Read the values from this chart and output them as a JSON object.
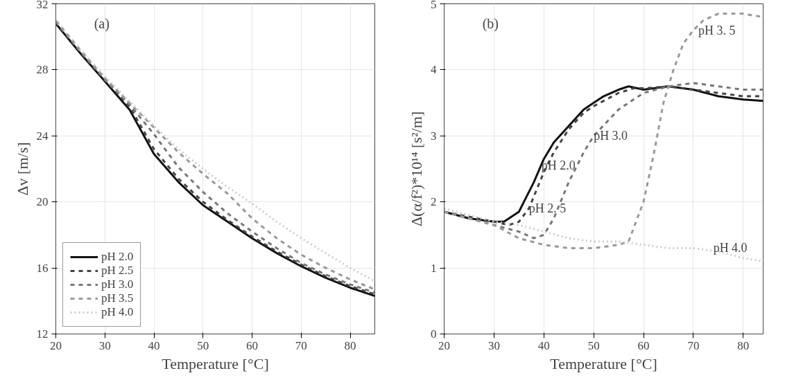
{
  "chart_data": [
    {
      "type": "line",
      "xlabel": "Temperature [°C]",
      "ylabel": "Δv [m/s]",
      "xlim": [
        20,
        85
      ],
      "ylim": [
        12,
        32
      ],
      "xticks": [
        20,
        30,
        40,
        50,
        60,
        70,
        80
      ],
      "yticks": [
        12,
        16,
        20,
        24,
        28,
        32
      ],
      "grid": true,
      "legend": "bottom left",
      "x": [
        20,
        25,
        30,
        35,
        40,
        45,
        50,
        55,
        60,
        65,
        70,
        75,
        80,
        85
      ],
      "annotations": [
        "(a)"
      ],
      "series": [
        {
          "name": "pH 2.0",
          "color": "#111111",
          "line_style": "solid",
          "values": [
            30.8,
            29.0,
            27.3,
            25.6,
            22.9,
            21.2,
            19.8,
            18.8,
            17.8,
            16.9,
            16.1,
            15.4,
            14.8,
            14.3
          ]
        },
        {
          "name": "pH 2.5",
          "color": "#444444",
          "line_style": "dashed",
          "values": [
            30.9,
            29.1,
            27.4,
            25.8,
            23.2,
            21.4,
            20.0,
            18.9,
            17.9,
            17.0,
            16.2,
            15.5,
            14.9,
            14.4
          ]
        },
        {
          "name": "pH 3.0",
          "color": "#777777",
          "line_style": "dashed",
          "values": [
            30.9,
            29.1,
            27.4,
            25.9,
            24.1,
            22.1,
            20.6,
            19.3,
            18.2,
            17.2,
            16.3,
            15.6,
            15.0,
            14.5
          ]
        },
        {
          "name": "pH 3.5",
          "color": "#999999",
          "line_style": "dashed",
          "values": [
            31.0,
            29.2,
            27.5,
            26.0,
            24.5,
            23.0,
            21.7,
            20.5,
            19.0,
            17.8,
            16.8,
            16.0,
            15.3,
            14.7
          ]
        },
        {
          "name": "pH 4.0",
          "color": "#cccccc",
          "line_style": "dotted",
          "values": [
            31.0,
            29.2,
            27.6,
            26.1,
            24.6,
            23.2,
            22.0,
            20.9,
            19.9,
            18.8,
            17.8,
            16.9,
            16.0,
            15.2
          ]
        }
      ]
    },
    {
      "type": "line",
      "xlabel": "Temperature [°C]",
      "ylabel": "Δ(α/f²)*10¹⁴ [s²/m]",
      "xlim": [
        20,
        84
      ],
      "ylim": [
        0,
        5
      ],
      "xticks": [
        20,
        30,
        40,
        50,
        60,
        70,
        80
      ],
      "yticks": [
        0,
        1,
        2,
        3,
        4,
        5
      ],
      "grid": true,
      "annotations": [
        "(b)",
        {
          "text": "pH 2.0",
          "x": 39.5,
          "y": 2.55
        },
        {
          "text": "pH 2. 5",
          "x": 37,
          "y": 1.9
        },
        {
          "text": "pH 3.0",
          "x": 50,
          "y": 3.0
        },
        {
          "text": "pH 3. 5",
          "x": 71,
          "y": 4.6
        },
        {
          "text": "pH 4.0",
          "x": 74,
          "y": 1.3
        }
      ],
      "series": [
        {
          "color": "#111111",
          "line_style": "solid",
          "x": [
            20,
            25,
            30,
            32,
            35,
            36,
            38,
            40,
            42,
            45,
            48,
            50,
            52,
            55,
            57,
            60,
            65,
            70,
            75,
            80,
            84
          ],
          "values": [
            1.85,
            1.75,
            1.7,
            1.7,
            1.85,
            2.0,
            2.3,
            2.65,
            2.9,
            3.15,
            3.4,
            3.5,
            3.6,
            3.7,
            3.75,
            3.7,
            3.75,
            3.7,
            3.6,
            3.55,
            3.53
          ]
        },
        {
          "color": "#444444",
          "line_style": "dashed",
          "x": [
            20,
            30,
            33,
            35,
            37,
            40,
            42,
            45,
            48,
            50,
            55,
            58,
            60,
            65,
            70,
            75,
            80,
            84
          ],
          "values": [
            1.85,
            1.7,
            1.65,
            1.7,
            1.9,
            2.45,
            2.75,
            3.1,
            3.35,
            3.45,
            3.65,
            3.72,
            3.72,
            3.75,
            3.7,
            3.65,
            3.6,
            3.6
          ]
        },
        {
          "color": "#777777",
          "line_style": "dashed",
          "x": [
            20,
            30,
            35,
            38,
            40,
            42,
            45,
            48,
            50,
            55,
            60,
            65,
            70,
            75,
            80,
            84
          ],
          "values": [
            1.85,
            1.65,
            1.55,
            1.45,
            1.5,
            1.75,
            2.3,
            2.75,
            3.0,
            3.4,
            3.65,
            3.75,
            3.8,
            3.75,
            3.7,
            3.7
          ]
        },
        {
          "color": "#999999",
          "line_style": "dashed",
          "x": [
            20,
            30,
            35,
            40,
            45,
            50,
            55,
            57,
            60,
            62,
            64,
            66,
            68,
            70,
            72,
            75,
            80,
            84
          ],
          "values": [
            1.85,
            1.65,
            1.45,
            1.35,
            1.3,
            1.3,
            1.35,
            1.4,
            2.0,
            2.7,
            3.5,
            4.0,
            4.4,
            4.6,
            4.75,
            4.85,
            4.85,
            4.8
          ]
        },
        {
          "color": "#cccccc",
          "line_style": "dotted",
          "x": [
            20,
            30,
            35,
            40,
            45,
            50,
            55,
            60,
            65,
            70,
            75,
            80,
            84
          ],
          "values": [
            1.9,
            1.7,
            1.65,
            1.55,
            1.45,
            1.4,
            1.4,
            1.35,
            1.3,
            1.3,
            1.25,
            1.15,
            1.1
          ]
        }
      ]
    }
  ]
}
